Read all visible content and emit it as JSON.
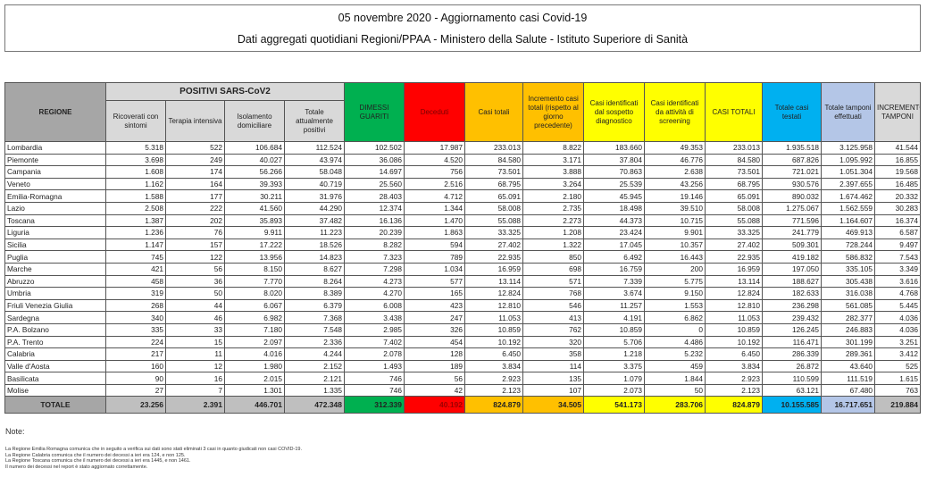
{
  "title": "05 novembre 2020 - Aggiornamento casi Covid-19",
  "subtitle": "Dati aggregati quotidiani Regioni/PPAA - Ministero della Salute - Istituto Superiore di Sanità",
  "colors": {
    "header_gray": "#a6a6a6",
    "light_gray": "#d9d9d9",
    "green": "#00b050",
    "red": "#ff0000",
    "orange": "#ffc000",
    "yellow": "#ffff00",
    "blue": "#00b0f0",
    "light_blue": "#b4c6e7",
    "total_gray": "#bfbfbf"
  },
  "table": {
    "group_header": "POSITIVI SARS-CoV2",
    "columns": [
      "REGIONE",
      "Ricoverati con sintomi",
      "Terapia intensiva",
      "Isolamento domiciliare",
      "Totale attualmente positivi",
      "DIMESSI GUARITI",
      "Deceduti",
      "Casi totali",
      "Incremento casi totali (rispetto al giorno precedente)",
      "Casi identificati dal sospetto diagnostico",
      "Casi identificati da attività di screening",
      "CASI TOTALI",
      "Totale casi testati",
      "Totale tamponi effettuati",
      "INCREMENTO TAMPONI"
    ],
    "rows": [
      [
        "Lombardia",
        "5.318",
        "522",
        "106.684",
        "112.524",
        "102.502",
        "17.987",
        "233.013",
        "8.822",
        "183.660",
        "49.353",
        "233.013",
        "1.935.518",
        "3.125.958",
        "41.544"
      ],
      [
        "Piemonte",
        "3.698",
        "249",
        "40.027",
        "43.974",
        "36.086",
        "4.520",
        "84.580",
        "3.171",
        "37.804",
        "46.776",
        "84.580",
        "687.826",
        "1.095.992",
        "16.855"
      ],
      [
        "Campania",
        "1.608",
        "174",
        "56.266",
        "58.048",
        "14.697",
        "756",
        "73.501",
        "3.888",
        "70.863",
        "2.638",
        "73.501",
        "721.021",
        "1.051.304",
        "19.568"
      ],
      [
        "Veneto",
        "1.162",
        "164",
        "39.393",
        "40.719",
        "25.560",
        "2.516",
        "68.795",
        "3.264",
        "25.539",
        "43.256",
        "68.795",
        "930.576",
        "2.397.655",
        "16.485"
      ],
      [
        "Emilia-Romagna",
        "1.588",
        "177",
        "30.211",
        "31.976",
        "28.403",
        "4.712",
        "65.091",
        "2.180",
        "45.945",
        "19.146",
        "65.091",
        "890.032",
        "1.674.462",
        "20.332"
      ],
      [
        "Lazio",
        "2.508",
        "222",
        "41.560",
        "44.290",
        "12.374",
        "1.344",
        "58.008",
        "2.735",
        "18.498",
        "39.510",
        "58.008",
        "1.275.067",
        "1.562.559",
        "30.283"
      ],
      [
        "Toscana",
        "1.387",
        "202",
        "35.893",
        "37.482",
        "16.136",
        "1.470",
        "55.088",
        "2.273",
        "44.373",
        "10.715",
        "55.088",
        "771.596",
        "1.164.607",
        "16.374"
      ],
      [
        "Liguria",
        "1.236",
        "76",
        "9.911",
        "11.223",
        "20.239",
        "1.863",
        "33.325",
        "1.208",
        "23.424",
        "9.901",
        "33.325",
        "241.779",
        "469.913",
        "6.587"
      ],
      [
        "Sicilia",
        "1.147",
        "157",
        "17.222",
        "18.526",
        "8.282",
        "594",
        "27.402",
        "1.322",
        "17.045",
        "10.357",
        "27.402",
        "509.301",
        "728.244",
        "9.497"
      ],
      [
        "Puglia",
        "745",
        "122",
        "13.956",
        "14.823",
        "7.323",
        "789",
        "22.935",
        "850",
        "6.492",
        "16.443",
        "22.935",
        "419.182",
        "586.832",
        "7.543"
      ],
      [
        "Marche",
        "421",
        "56",
        "8.150",
        "8.627",
        "7.298",
        "1.034",
        "16.959",
        "698",
        "16.759",
        "200",
        "16.959",
        "197.050",
        "335.105",
        "3.349"
      ],
      [
        "Abruzzo",
        "458",
        "36",
        "7.770",
        "8.264",
        "4.273",
        "577",
        "13.114",
        "571",
        "7.339",
        "5.775",
        "13.114",
        "188.627",
        "305.438",
        "3.616"
      ],
      [
        "Umbria",
        "319",
        "50",
        "8.020",
        "8.389",
        "4.270",
        "165",
        "12.824",
        "768",
        "3.674",
        "9.150",
        "12.824",
        "182.633",
        "316.038",
        "4.768"
      ],
      [
        "Friuli Venezia Giulia",
        "268",
        "44",
        "6.067",
        "6.379",
        "6.008",
        "423",
        "12.810",
        "546",
        "11.257",
        "1.553",
        "12.810",
        "236.298",
        "561.085",
        "5.445"
      ],
      [
        "Sardegna",
        "340",
        "46",
        "6.982",
        "7.368",
        "3.438",
        "247",
        "11.053",
        "413",
        "4.191",
        "6.862",
        "11.053",
        "239.432",
        "282.377",
        "4.036"
      ],
      [
        "P.A. Bolzano",
        "335",
        "33",
        "7.180",
        "7.548",
        "2.985",
        "326",
        "10.859",
        "762",
        "10.859",
        "0",
        "10.859",
        "126.245",
        "246.883",
        "4.036"
      ],
      [
        "P.A. Trento",
        "224",
        "15",
        "2.097",
        "2.336",
        "7.402",
        "454",
        "10.192",
        "320",
        "5.706",
        "4.486",
        "10.192",
        "116.471",
        "301.199",
        "3.251"
      ],
      [
        "Calabria",
        "217",
        "11",
        "4.016",
        "4.244",
        "2.078",
        "128",
        "6.450",
        "358",
        "1.218",
        "5.232",
        "6.450",
        "286.339",
        "289.361",
        "3.412"
      ],
      [
        "Valle d'Aosta",
        "160",
        "12",
        "1.980",
        "2.152",
        "1.493",
        "189",
        "3.834",
        "114",
        "3.375",
        "459",
        "3.834",
        "26.872",
        "43.640",
        "525"
      ],
      [
        "Basilicata",
        "90",
        "16",
        "2.015",
        "2.121",
        "746",
        "56",
        "2.923",
        "135",
        "1.079",
        "1.844",
        "2.923",
        "110.599",
        "111.519",
        "1.615"
      ],
      [
        "Molise",
        "27",
        "7",
        "1.301",
        "1.335",
        "746",
        "42",
        "2.123",
        "107",
        "2.073",
        "50",
        "2.123",
        "63.121",
        "67.480",
        "763"
      ]
    ],
    "total": [
      "TOTALE",
      "23.256",
      "2.391",
      "446.701",
      "472.348",
      "312.339",
      "40.192",
      "824.879",
      "34.505",
      "541.173",
      "283.706",
      "824.879",
      "10.155.585",
      "16.717.651",
      "219.884"
    ]
  },
  "notes": {
    "heading": "Note:",
    "lines": [
      "La Regione Emilia Romagna comunica che in seguito a verifica sui dati sono stati eliminati 3 casi in quanto giudicati non casi COVID-19.",
      "La Regione Calabria comunica che il numero dei decessi a ieri era 124, e non 125.",
      "La Regione Toscana comunica che il numero dei decessi a ieri era 1445, e non 1461.",
      "Il numero dei decessi nel report è stato aggiornato correttamente."
    ]
  }
}
